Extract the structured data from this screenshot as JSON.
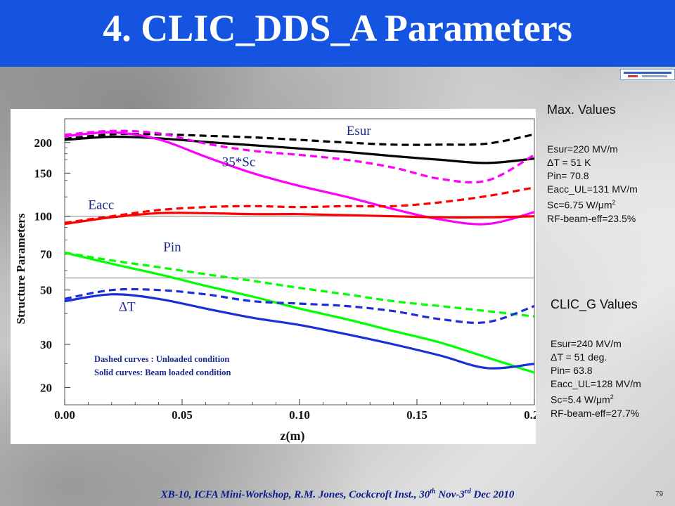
{
  "title": "4. CLIC_DDS_A Parameters",
  "max_values": {
    "heading": "Max. Values",
    "items": [
      "Esur=220 MV/m",
      "ΔT = 51 K",
      "Pin= 70.8",
      "Eacc_UL=131 MV/m",
      "Sc=6.75 W/μm",
      "RF-beam-eff=23.5%"
    ]
  },
  "clic_g_values": {
    "heading": "CLIC_G Values",
    "items": [
      "Esur=240 MV/m",
      "ΔT = 51 deg.",
      "Pin= 63.8",
      "Eacc_UL=128 MV/m",
      "Sc=5.4 W/μm",
      "RF-beam-eff=27.7%"
    ]
  },
  "superscript_2": "2",
  "footer": {
    "prefix": "XB-10, ICFA Mini-Workshop, R.M. Jones, Cockcroft Inst., 30",
    "sup1": "th",
    "middle": " Nov-3",
    "sup2": "rd",
    "suffix": " Dec 2010"
  },
  "page_number": "79",
  "colors": {
    "title_bar": "#1554e0",
    "esur": "#000000",
    "sc": "#ff00ff",
    "eacc": "#ff0000",
    "pin": "#00ff00",
    "deltaT": "#1a2fd8",
    "note_text": "#1a2a8f"
  },
  "chart_data": {
    "type": "line",
    "xlabel": "z(m)",
    "ylabel": "Structure Parameters",
    "yscale": "log",
    "xlim": [
      0.0,
      0.2
    ],
    "ylim": [
      17,
      250
    ],
    "x_ticks": [
      "0.00",
      "0.05",
      "0.10",
      "0.15",
      "0.20"
    ],
    "y_ticks": [
      "20",
      "30",
      "50",
      "70",
      "100",
      "150",
      "200"
    ],
    "x_tick_values": [
      0.0,
      0.05,
      0.1,
      0.15,
      0.2
    ],
    "y_tick_values": [
      20,
      30,
      50,
      70,
      100,
      150,
      200
    ],
    "reference_lines": [
      100,
      56
    ],
    "annotation_lines": [
      "Dashed curves : Unloaded condition",
      "Solid curves:  Beam loaded condition"
    ],
    "curve_labels": [
      {
        "text": "Esur",
        "near_x": 0.12,
        "near_y": 215
      },
      {
        "text": "35*Sc",
        "near_x": 0.067,
        "near_y": 160
      },
      {
        "text": "Eacc",
        "near_x": 0.01,
        "near_y": 107
      },
      {
        "text": "Pin",
        "near_x": 0.042,
        "near_y": 72
      },
      {
        "text": "ΔT",
        "near_x": 0.023,
        "near_y": 41
      }
    ],
    "x": [
      0.0,
      0.02,
      0.04,
      0.06,
      0.08,
      0.1,
      0.12,
      0.14,
      0.16,
      0.18,
      0.2
    ],
    "series": [
      {
        "name": "Esur",
        "style": "solid",
        "color": "#000000",
        "values": [
          205,
          211,
          208,
          201,
          195,
          189,
          183,
          176,
          170,
          165,
          172
        ]
      },
      {
        "name": "Esur",
        "style": "dashed",
        "color": "#000000",
        "values": [
          207,
          216,
          216,
          213,
          210,
          205,
          200,
          196,
          196,
          198,
          216
        ]
      },
      {
        "name": "35*Sc",
        "style": "solid",
        "color": "#ff00ff",
        "values": [
          212,
          220,
          206,
          175,
          150,
          133,
          120,
          107,
          97,
          93,
          104
        ]
      },
      {
        "name": "35*Sc",
        "style": "dashed",
        "color": "#ff00ff",
        "values": [
          215,
          223,
          218,
          198,
          185,
          178,
          170,
          158,
          142,
          140,
          178
        ]
      },
      {
        "name": "Eacc",
        "style": "solid",
        "color": "#ff0000",
        "values": [
          93,
          99,
          103,
          103,
          102,
          102,
          101,
          100,
          99,
          99,
          100
        ]
      },
      {
        "name": "Eacc",
        "style": "dashed",
        "color": "#ff0000",
        "values": [
          94,
          100,
          106,
          109,
          110,
          109,
          110,
          110,
          114,
          121,
          131
        ]
      },
      {
        "name": "Pin",
        "style": "solid",
        "color": "#00ff00",
        "values": [
          71,
          64,
          58,
          52,
          47,
          42,
          38,
          34,
          30.5,
          26.5,
          23
        ]
      },
      {
        "name": "Pin",
        "style": "dashed",
        "color": "#00ff00",
        "values": [
          71,
          66,
          62,
          58,
          54.5,
          51,
          48,
          45,
          43,
          41,
          39
        ]
      },
      {
        "name": "ΔT",
        "style": "solid",
        "color": "#1a2fd8",
        "values": [
          45,
          48,
          46,
          42,
          38.5,
          36,
          33,
          30,
          27,
          24,
          25
        ]
      },
      {
        "name": "ΔT",
        "style": "dashed",
        "color": "#1a2fd8",
        "values": [
          46,
          50,
          50,
          48,
          45,
          44,
          43,
          41,
          38,
          37,
          43
        ]
      }
    ]
  }
}
